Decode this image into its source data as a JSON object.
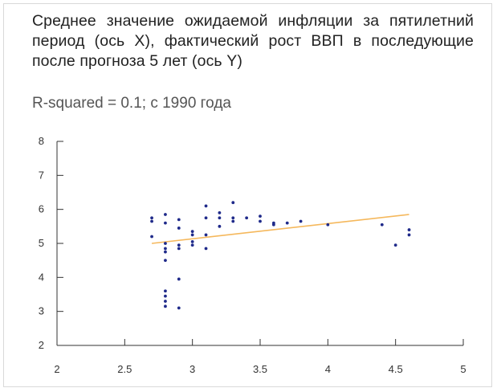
{
  "title": "Среднее значение ожидаемой инфляции за пятилетний период (ось X), фактический рост ВВП в последующие после прогноза 5 лет (ось Y)",
  "subtitle": "R-squared = 0.1; с 1990 года",
  "colors": {
    "points": "#1f2a8a",
    "trend": "#f5b85c",
    "axis": "#333333"
  },
  "chart_data": {
    "type": "scatter",
    "title": "Среднее значение ожидаемой инфляции за пятилетний период (ось X), фактический рост ВВП в последующие после прогноза 5 лет (ось Y)",
    "subtitle": "R-squared = 0.1; с 1990 года",
    "xlabel": "",
    "ylabel": "",
    "xlim": [
      2,
      5
    ],
    "ylim": [
      2,
      8
    ],
    "xticks": [
      2,
      2.5,
      3,
      3.5,
      4,
      4.5,
      5
    ],
    "xtick_labels": [
      "2",
      "2.5",
      "3",
      "3.5",
      "4",
      "4.5",
      "5"
    ],
    "yticks": [
      2,
      3,
      4,
      5,
      6,
      7,
      8
    ],
    "ytick_labels": [
      "2",
      "3",
      "4",
      "5",
      "6",
      "7",
      "8"
    ],
    "grid": false,
    "points": [
      [
        2.7,
        5.75
      ],
      [
        2.7,
        5.65
      ],
      [
        2.7,
        5.2
      ],
      [
        2.8,
        5.85
      ],
      [
        2.8,
        5.6
      ],
      [
        2.8,
        5.0
      ],
      [
        2.8,
        4.85
      ],
      [
        2.8,
        4.75
      ],
      [
        2.8,
        4.5
      ],
      [
        2.8,
        3.6
      ],
      [
        2.8,
        3.45
      ],
      [
        2.8,
        3.3
      ],
      [
        2.8,
        3.15
      ],
      [
        2.9,
        5.7
      ],
      [
        2.9,
        5.45
      ],
      [
        2.9,
        4.95
      ],
      [
        2.9,
        4.85
      ],
      [
        2.9,
        3.95
      ],
      [
        2.9,
        3.1
      ],
      [
        3.0,
        5.35
      ],
      [
        3.0,
        5.25
      ],
      [
        3.0,
        5.05
      ],
      [
        3.0,
        4.95
      ],
      [
        3.1,
        6.1
      ],
      [
        3.1,
        5.75
      ],
      [
        3.1,
        5.25
      ],
      [
        3.1,
        4.85
      ],
      [
        3.2,
        5.9
      ],
      [
        3.2,
        5.75
      ],
      [
        3.2,
        5.5
      ],
      [
        3.3,
        6.2
      ],
      [
        3.3,
        5.75
      ],
      [
        3.3,
        5.65
      ],
      [
        3.4,
        5.75
      ],
      [
        3.5,
        5.8
      ],
      [
        3.5,
        5.65
      ],
      [
        3.6,
        5.6
      ],
      [
        3.6,
        5.55
      ],
      [
        3.7,
        5.6
      ],
      [
        3.8,
        5.65
      ],
      [
        4.0,
        5.55
      ],
      [
        4.4,
        5.55
      ],
      [
        4.5,
        4.95
      ],
      [
        4.6,
        5.4
      ],
      [
        4.6,
        5.25
      ]
    ],
    "trendline": {
      "x": [
        2.7,
        4.6
      ],
      "y": [
        5.0,
        5.85
      ]
    }
  }
}
